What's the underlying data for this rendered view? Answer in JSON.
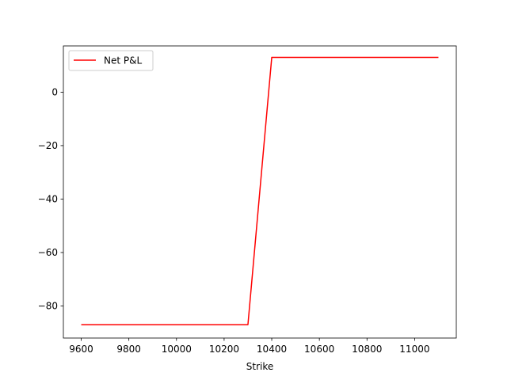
{
  "chart_data": {
    "type": "line",
    "title": "",
    "xlabel": "Strike",
    "ylabel": "",
    "xlim": [
      9525,
      11175
    ],
    "ylim": [
      -92,
      17.3
    ],
    "x_ticks": [
      9600,
      9800,
      10000,
      10200,
      10400,
      10600,
      10800,
      11000
    ],
    "y_ticks": [
      -80,
      -60,
      -40,
      -20,
      0
    ],
    "y_tick_labels": [
      "−80",
      "−60",
      "−40",
      "−20",
      "0"
    ],
    "grid": false,
    "legend_position": "top-left",
    "series": [
      {
        "name": "Net P&L",
        "color": "#ff0000",
        "x": [
          9600,
          10300,
          10400,
          11100
        ],
        "y": [
          -87,
          -87,
          13,
          13
        ]
      }
    ]
  }
}
